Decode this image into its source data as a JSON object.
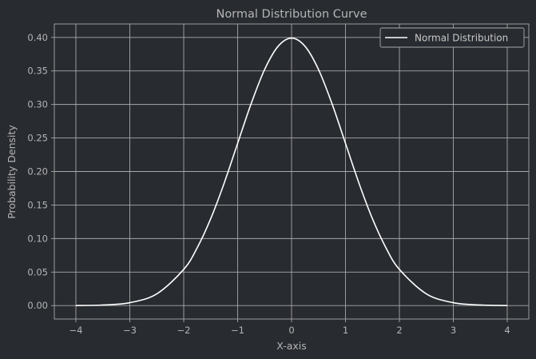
{
  "chart_data": {
    "type": "line",
    "title": "Normal Distribution Curve",
    "xlabel": "X-axis",
    "ylabel": "Probability Density",
    "xlim": [
      -4.4,
      4.4
    ],
    "ylim": [
      -0.02,
      0.42
    ],
    "x_ticks": [
      "−4",
      "−3",
      "−2",
      "−1",
      "0",
      "1",
      "2",
      "3",
      "4"
    ],
    "x_tick_values": [
      -4,
      -3,
      -2,
      -1,
      0,
      1,
      2,
      3,
      4
    ],
    "y_ticks": [
      "0.00",
      "0.05",
      "0.10",
      "0.15",
      "0.20",
      "0.25",
      "0.30",
      "0.35",
      "0.40"
    ],
    "y_tick_values": [
      0,
      0.05,
      0.1,
      0.15,
      0.2,
      0.25,
      0.3,
      0.35,
      0.4
    ],
    "grid": true,
    "legend_position": "top-right",
    "series": [
      {
        "name": "Normal Distribution",
        "color": "#ffffff",
        "x": [
          -4,
          -3.5,
          -3,
          -2.5,
          -2,
          -1.75,
          -1.5,
          -1.25,
          -1,
          -0.75,
          -0.5,
          -0.25,
          0,
          0.25,
          0.5,
          0.75,
          1,
          1.25,
          1.5,
          1.75,
          2,
          2.5,
          3,
          3.5,
          4
        ],
        "y": [
          0.0001,
          0.0009,
          0.0044,
          0.0175,
          0.054,
          0.0863,
          0.1295,
          0.1826,
          0.242,
          0.3011,
          0.3521,
          0.3867,
          0.3989,
          0.3867,
          0.3521,
          0.3011,
          0.242,
          0.1826,
          0.1295,
          0.0863,
          0.054,
          0.0175,
          0.0044,
          0.0009,
          0.0001
        ]
      }
    ]
  },
  "colors": {
    "background": "#282b30",
    "grid": "#a8a8a8",
    "text": "#b5b5b5"
  }
}
